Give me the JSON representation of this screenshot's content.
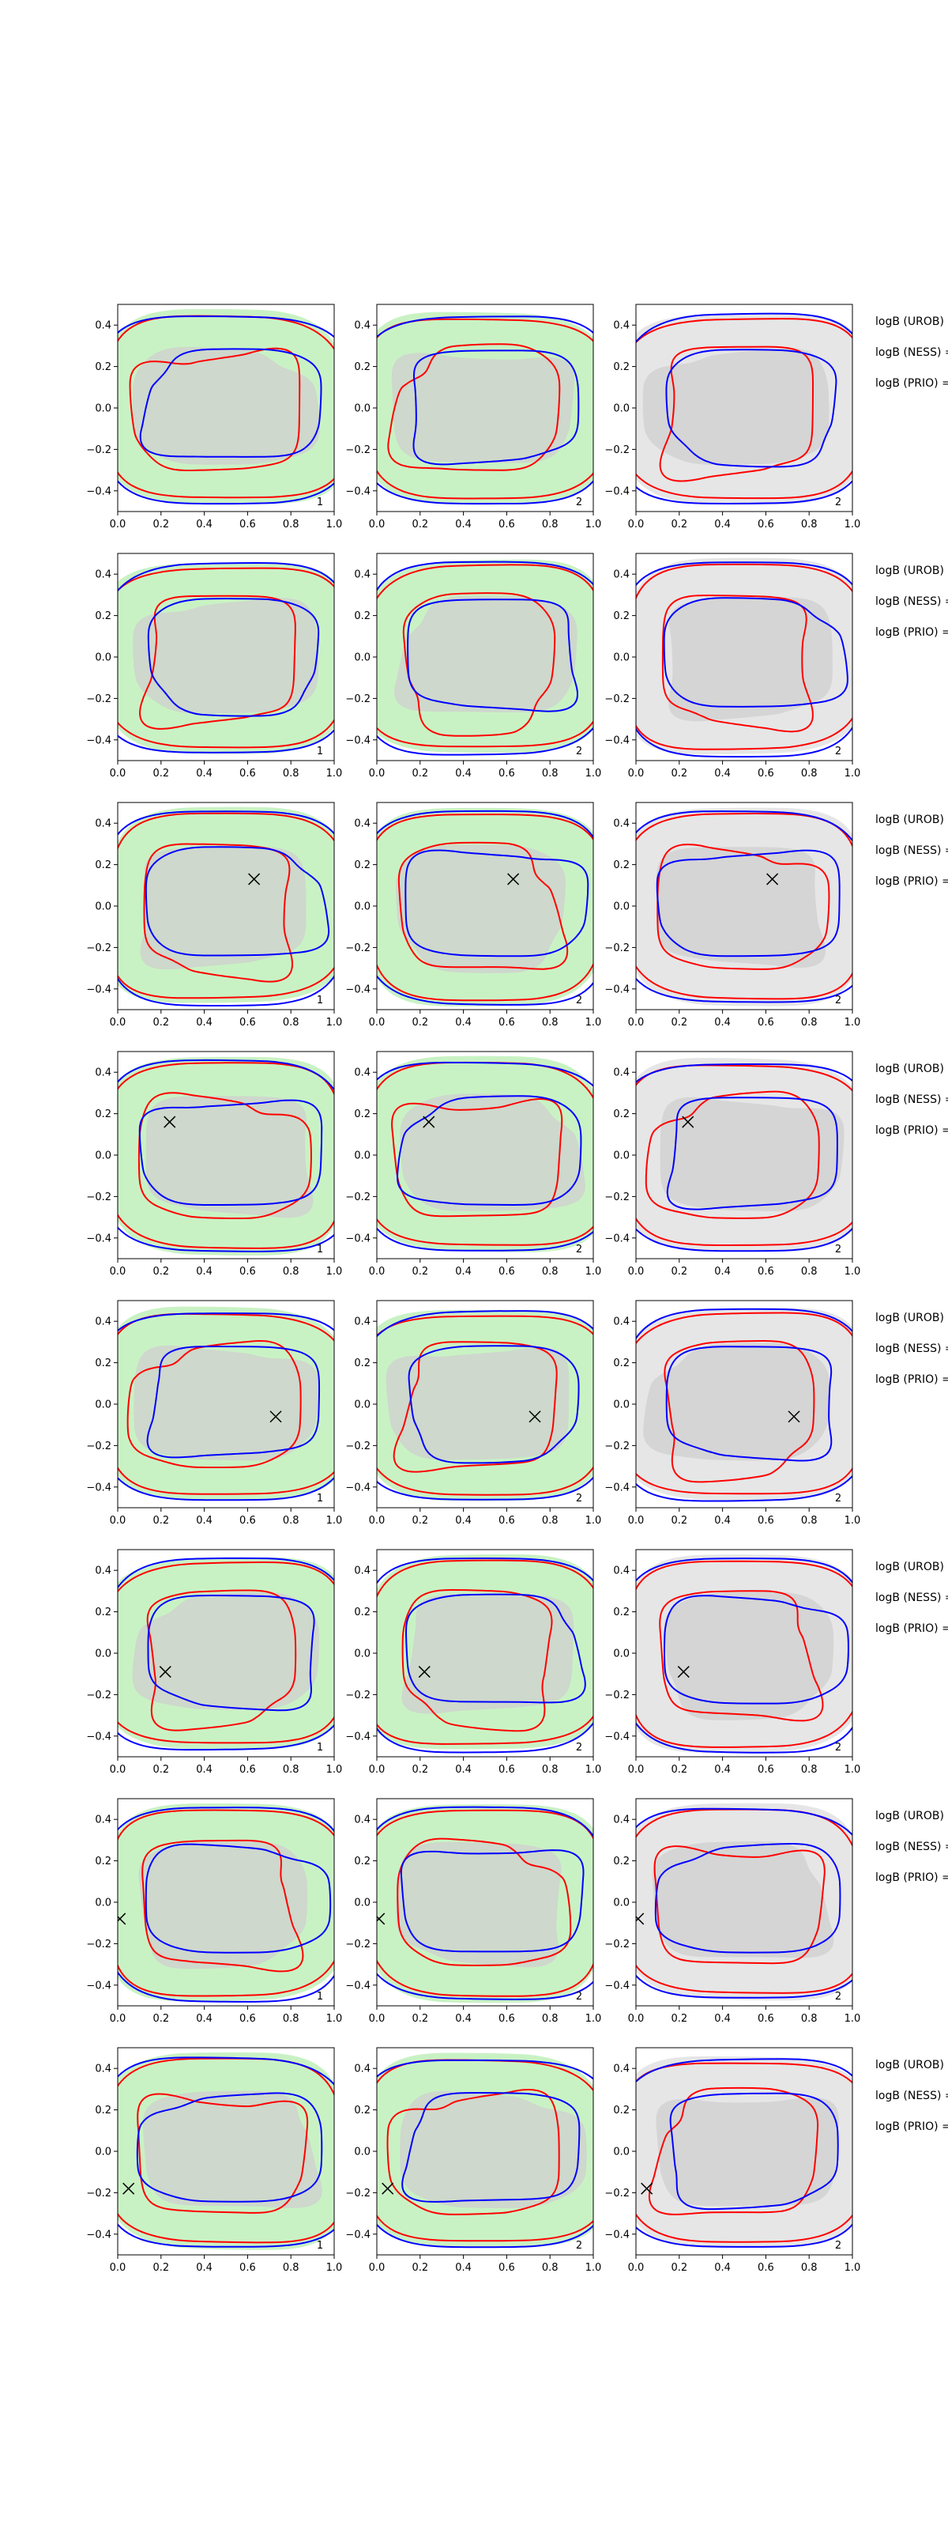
{
  "chart_data": {
    "type": "contour-grid",
    "rows": 8,
    "columns": 3,
    "xlim": [
      0.0,
      1.0
    ],
    "ylim": [
      -0.5,
      0.5
    ],
    "x_ticks": [
      "0.0",
      "0.2",
      "0.4",
      "0.6",
      "0.8",
      "1.0"
    ],
    "y_ticks": [
      "0.4",
      "0.2",
      "0.0",
      "−0.2",
      "−0.4"
    ],
    "y_tick_values": [
      0.4,
      0.2,
      0.0,
      -0.2,
      -0.4
    ],
    "x_tick_values": [
      0.0,
      0.2,
      0.4,
      0.6,
      0.8,
      1.0
    ],
    "panel_labels": [
      "1",
      "2",
      "2"
    ],
    "row_annotations": [
      "logB (UROB) =",
      "logB (NESS) =",
      "logB (PRIO) ="
    ],
    "grid": false,
    "panel_fill_colors": [
      "#c9f2c4",
      "#c9f2c4",
      "#e6e6e6"
    ],
    "inner_fill_color": "#cfcfcf",
    "contour_colors": [
      "#ff0000",
      "#0000ff"
    ],
    "markers": [
      {
        "row": 1,
        "x": null,
        "y": null
      },
      {
        "row": 2,
        "x": null,
        "y": null
      },
      {
        "row": 3,
        "x": 0.63,
        "y": 0.13
      },
      {
        "row": 4,
        "x": 0.24,
        "y": 0.16
      },
      {
        "row": 5,
        "x": 0.73,
        "y": -0.06
      },
      {
        "row": 6,
        "x": 0.22,
        "y": -0.09
      },
      {
        "row": 7,
        "x": 0.01,
        "y": -0.08
      },
      {
        "row": 8,
        "x": 0.05,
        "y": -0.18
      }
    ]
  }
}
